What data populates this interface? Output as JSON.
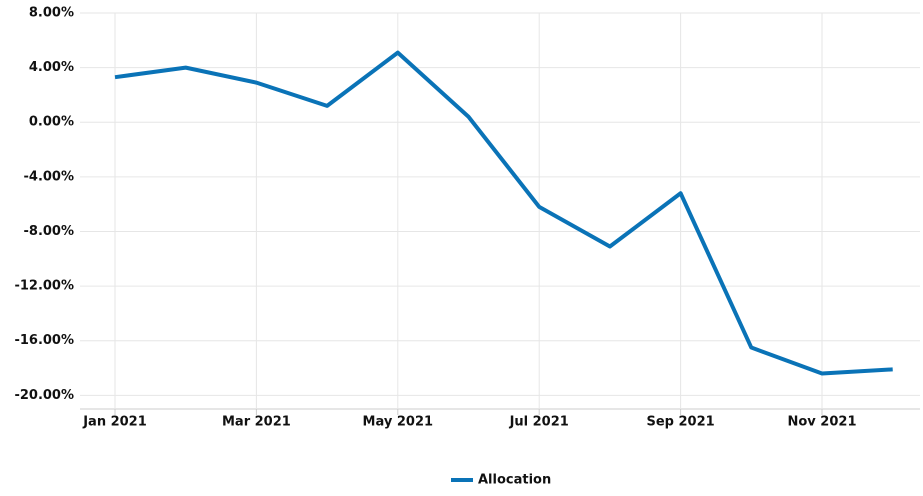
{
  "chart_data": {
    "type": "line",
    "categories": [
      "Jan 2021",
      null,
      "Mar 2021",
      null,
      "May 2021",
      null,
      "Jul 2021",
      null,
      "Sep 2021",
      null,
      "Nov 2021",
      null
    ],
    "series": [
      {
        "name": "Allocation",
        "color": "#0a73b7",
        "values": [
          3.3,
          4.0,
          2.9,
          1.2,
          5.1,
          0.4,
          -6.2,
          -9.1,
          -5.2,
          -16.5,
          -18.4,
          -18.1
        ]
      }
    ],
    "ylim": [
      -21,
      8
    ],
    "yticks": [
      {
        "value": 8,
        "label": "8.00%"
      },
      {
        "value": 4,
        "label": "4.00%"
      },
      {
        "value": 0,
        "label": "0.00%"
      },
      {
        "value": -4,
        "label": "-4.00%"
      },
      {
        "value": -8,
        "label": "-8.00%"
      },
      {
        "value": -12,
        "label": "-12.00%"
      },
      {
        "value": -16,
        "label": "-16.00%"
      },
      {
        "value": -20,
        "label": "-20.00%"
      }
    ],
    "grid": true
  }
}
